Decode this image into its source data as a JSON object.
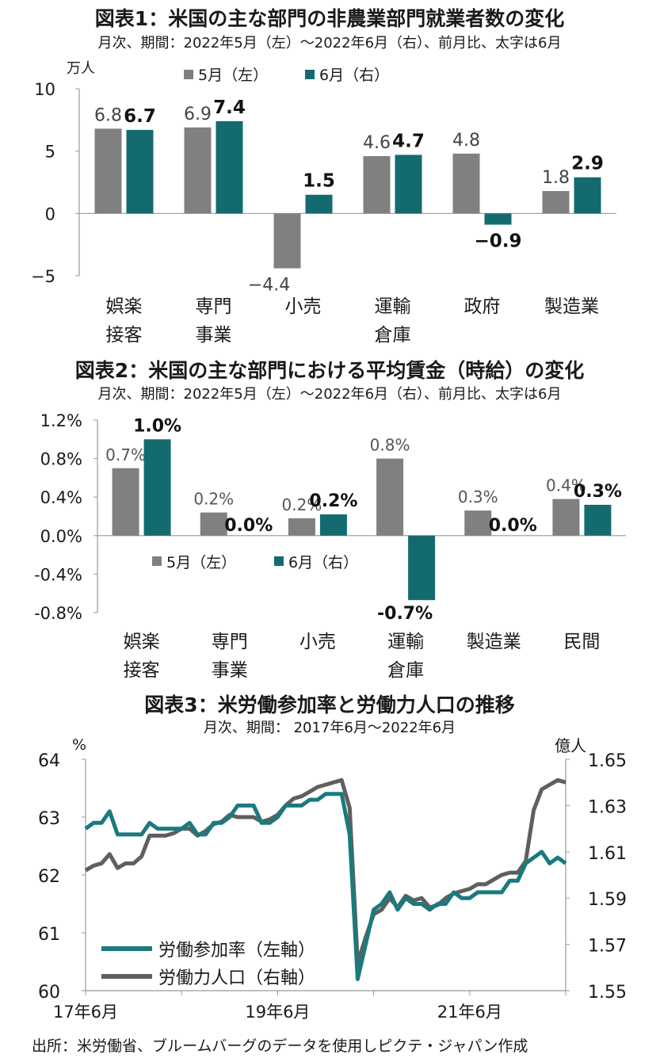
{
  "colors": {
    "may": "#808080",
    "june": "#136b70",
    "participation": "#1a7a7e",
    "labor_force": "#5f5f5f",
    "axis": "#999999"
  },
  "source": "出所：米労働省、ブルームバーグのデータを使用しピクテ・ジャパン作成",
  "chart_data": [
    {
      "type": "bar",
      "title": "図表1：米国の主な部門の非農業部門就業者数の変化",
      "subtitle": "月次、期間：2022年5月（左）～2022年6月（右）、前月比、太字は6月",
      "ylabel": "万人",
      "ylim": [
        -5,
        10
      ],
      "yticks": [
        "10",
        "5",
        "0",
        "−5"
      ],
      "categories": [
        [
          "娯楽",
          "接客"
        ],
        [
          "専門",
          "事業"
        ],
        [
          "小売",
          ""
        ],
        [
          "運輸",
          "倉庫"
        ],
        [
          "政府",
          ""
        ],
        [
          "製造業",
          ""
        ]
      ],
      "legend": [
        "5月（左）",
        "6月（右）"
      ],
      "legend_position": "top",
      "series": [
        {
          "name": "5月（左）",
          "values": [
            6.8,
            6.9,
            -4.4,
            4.6,
            4.8,
            1.8
          ],
          "labels": [
            "6.8",
            "6.9",
            "−4.4",
            "4.6",
            "4.8",
            "1.8"
          ]
        },
        {
          "name": "6月（右）",
          "values": [
            6.7,
            7.4,
            1.5,
            4.7,
            -0.9,
            2.9
          ],
          "labels": [
            "6.7",
            "7.4",
            "1.5",
            "4.7",
            "−0.9",
            "2.9"
          ]
        }
      ]
    },
    {
      "type": "bar",
      "title": "図表2：米国の主な部門における平均賃金（時給）の変化",
      "subtitle": "月次、期間：2022年5月（左）～2022年6月（右）、前月比、太字は6月",
      "ylim": [
        -0.8,
        1.2
      ],
      "yticks": [
        "1.2%",
        "0.8%",
        "0.4%",
        "0.0%",
        "-0.4%",
        "-0.8%"
      ],
      "categories": [
        [
          "娯楽",
          "接客"
        ],
        [
          "専門",
          "事業"
        ],
        [
          "小売",
          ""
        ],
        [
          "運輸",
          "倉庫"
        ],
        [
          "製造業",
          ""
        ],
        [
          "民間",
          ""
        ]
      ],
      "legend": [
        "5月（左）",
        "6月（右）"
      ],
      "legend_position": "middle",
      "series": [
        {
          "name": "5月（左）",
          "values": [
            0.7,
            0.24,
            0.18,
            0.8,
            0.26,
            0.38
          ],
          "labels": [
            "0.7%",
            "0.2%",
            "0.2%",
            "0.8%",
            "0.3%",
            "0.4%"
          ]
        },
        {
          "name": "6月（右）",
          "values": [
            1.0,
            0.0,
            0.22,
            -0.67,
            0.0,
            0.32
          ],
          "labels": [
            "1.0%",
            "0.0%",
            "0.2%",
            "-0.7%",
            "0.0%",
            "0.3%"
          ]
        }
      ]
    },
    {
      "type": "line",
      "title": "図表3：米労働参加率と労働力人口の推移",
      "subtitle": "月次、期間： 2017年6月～2022年6月",
      "ylabel_left": "%",
      "ylabel_right": "億人",
      "ylim_left": [
        60,
        64
      ],
      "ylim_right": [
        1.55,
        1.65
      ],
      "yticks_left": [
        "64",
        "63",
        "62",
        "61",
        "60"
      ],
      "yticks_right": [
        "1.65",
        "1.63",
        "1.61",
        "1.59",
        "1.57",
        "1.55"
      ],
      "xticks": [
        "17年6月",
        "19年6月",
        "21年6月"
      ],
      "legend": [
        "労働参加率（左軸）",
        "労働力人口（右軸）"
      ],
      "legend_position": "bottom-left",
      "x": [
        "2017-06",
        "2017-07",
        "2017-08",
        "2017-09",
        "2017-10",
        "2017-11",
        "2017-12",
        "2018-01",
        "2018-02",
        "2018-03",
        "2018-04",
        "2018-05",
        "2018-06",
        "2018-07",
        "2018-08",
        "2018-09",
        "2018-10",
        "2018-11",
        "2018-12",
        "2019-01",
        "2019-02",
        "2019-03",
        "2019-04",
        "2019-05",
        "2019-06",
        "2019-07",
        "2019-08",
        "2019-09",
        "2019-10",
        "2019-11",
        "2019-12",
        "2020-01",
        "2020-02",
        "2020-03",
        "2020-04",
        "2020-05",
        "2020-06",
        "2020-07",
        "2020-08",
        "2020-09",
        "2020-10",
        "2020-11",
        "2020-12",
        "2021-01",
        "2021-02",
        "2021-03",
        "2021-04",
        "2021-05",
        "2021-06",
        "2021-07",
        "2021-08",
        "2021-09",
        "2021-10",
        "2021-11",
        "2021-12",
        "2022-01",
        "2022-02",
        "2022-03",
        "2022-04",
        "2022-05",
        "2022-06"
      ],
      "series": [
        {
          "name": "労働参加率（左軸）",
          "axis": "left",
          "values": [
            62.8,
            62.9,
            62.9,
            63.1,
            62.7,
            62.7,
            62.7,
            62.7,
            62.9,
            62.8,
            62.8,
            62.8,
            62.8,
            62.9,
            62.7,
            62.7,
            62.9,
            62.9,
            63.0,
            63.2,
            63.2,
            63.2,
            62.9,
            62.9,
            63.0,
            63.2,
            63.2,
            63.2,
            63.3,
            63.3,
            63.4,
            63.4,
            63.4,
            62.7,
            60.2,
            60.8,
            61.4,
            61.5,
            61.7,
            61.4,
            61.6,
            61.5,
            61.5,
            61.4,
            61.5,
            61.5,
            61.7,
            61.6,
            61.6,
            61.7,
            61.7,
            61.7,
            61.7,
            61.9,
            61.9,
            62.2,
            62.3,
            62.4,
            62.2,
            62.3,
            62.2
          ]
        },
        {
          "name": "労働力人口（右軸）",
          "axis": "right",
          "values": [
            1.602,
            1.604,
            1.605,
            1.609,
            1.603,
            1.605,
            1.605,
            1.608,
            1.617,
            1.617,
            1.617,
            1.618,
            1.62,
            1.62,
            1.617,
            1.619,
            1.622,
            1.623,
            1.626,
            1.625,
            1.625,
            1.625,
            1.623,
            1.624,
            1.626,
            1.63,
            1.633,
            1.634,
            1.636,
            1.638,
            1.639,
            1.64,
            1.641,
            1.629,
            1.562,
            1.573,
            1.583,
            1.585,
            1.59,
            1.586,
            1.591,
            1.589,
            1.59,
            1.586,
            1.587,
            1.59,
            1.592,
            1.593,
            1.594,
            1.596,
            1.596,
            1.598,
            1.6,
            1.601,
            1.601,
            1.606,
            1.628,
            1.637,
            1.639,
            1.641,
            1.64
          ]
        }
      ]
    }
  ]
}
